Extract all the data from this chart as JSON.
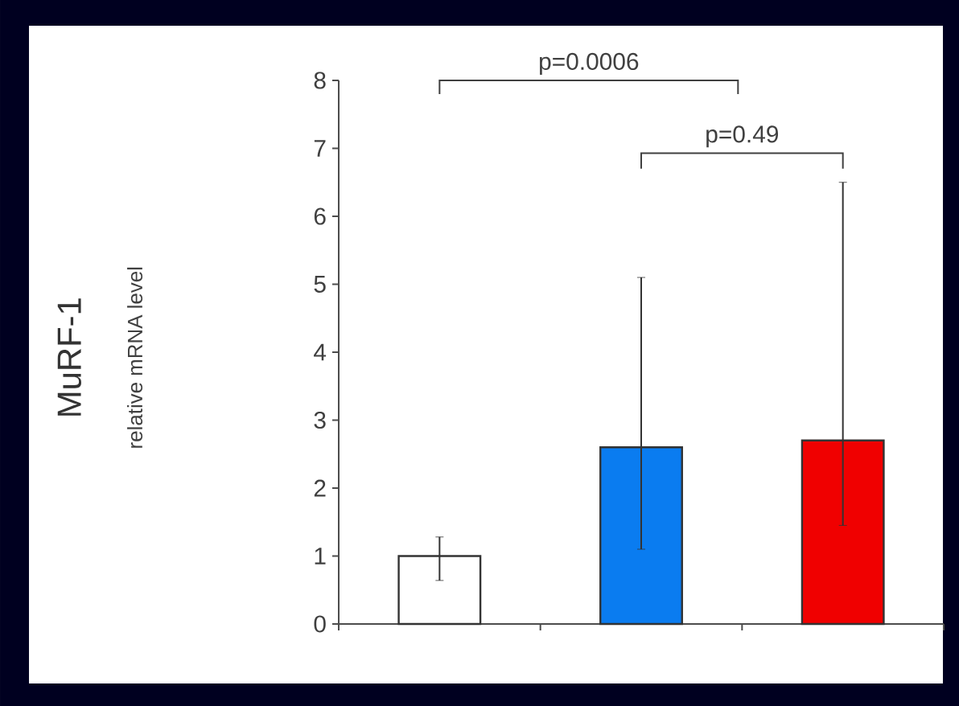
{
  "chart_data": {
    "type": "bar",
    "annotations": [
      "MuRF-1",
      "relative mRNA level",
      "p=0.0006",
      "p=0.49"
    ],
    "categories": [
      null,
      null,
      null
    ],
    "values": [
      1.0,
      2.6,
      2.7
    ],
    "colors": [
      "#ffffff",
      "#0a7cf0",
      "#f00000"
    ],
    "errors": [
      [
        0.64,
        1.28
      ],
      [
        1.1,
        5.1
      ],
      [
        1.45,
        6.5
      ]
    ],
    "ylim": [
      0,
      8
    ],
    "yticks": [
      0,
      1,
      2,
      3,
      4,
      5,
      6,
      7,
      8
    ],
    "grid": false
  }
}
